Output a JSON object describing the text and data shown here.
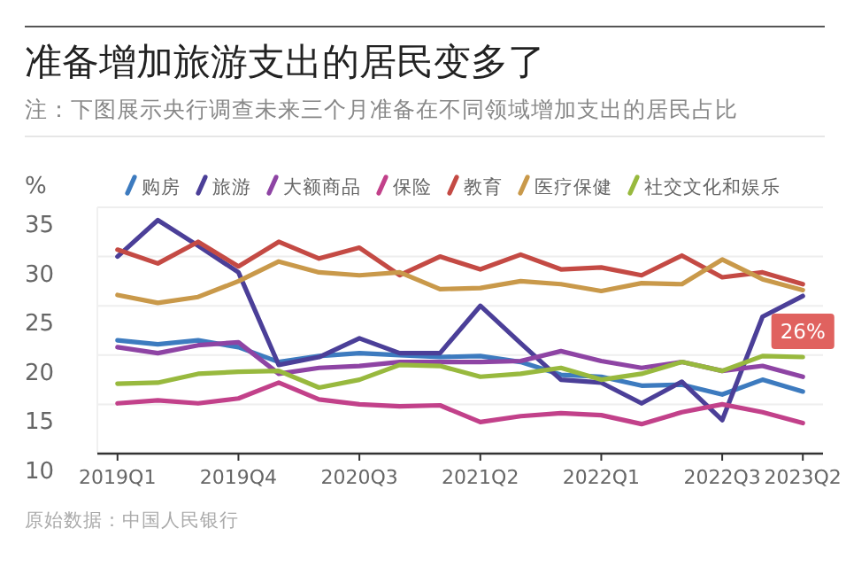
{
  "chart_data": {
    "type": "line",
    "title": "准备增加旅游支出的居民变多了",
    "subtitle": "注：下图展示央行调查未来三个月准备在不同领域增加支出的居民占比",
    "ylabel": "%",
    "categories": [
      "2019Q1",
      null,
      null,
      "2019Q4",
      null,
      null,
      "2020Q3",
      null,
      null,
      "2021Q2",
      null,
      null,
      "2022Q1",
      null,
      null,
      "2022Q3",
      null,
      "2023Q2"
    ],
    "series": [
      {
        "name": "购房",
        "color": "#3d7bbf",
        "values": [
          21.5,
          21.1,
          21.5,
          20.8,
          19.3,
          19.9,
          20.2,
          20.0,
          19.8,
          19.9,
          19.3,
          18.0,
          17.8,
          16.9,
          17.0,
          16.0,
          17.5,
          16.3
        ]
      },
      {
        "name": "旅游",
        "color": "#4b3f98",
        "values": [
          30.0,
          33.7,
          31.1,
          28.4,
          19.0,
          19.8,
          21.7,
          20.2,
          20.2,
          25.0,
          21.2,
          17.5,
          17.2,
          15.1,
          17.3,
          13.4,
          23.9,
          26
        ]
      },
      {
        "name": "大额商品",
        "color": "#8e44a4",
        "values": [
          20.8,
          20.2,
          21.0,
          21.3,
          18.1,
          18.7,
          18.9,
          19.3,
          19.3,
          19.3,
          19.4,
          20.4,
          19.4,
          18.7,
          19.3,
          18.4,
          18.9,
          17.8
        ]
      },
      {
        "name": "保险",
        "color": "#c2418a",
        "values": [
          15.1,
          15.4,
          15.1,
          15.6,
          17.2,
          15.5,
          15.0,
          14.8,
          14.9,
          13.2,
          13.8,
          14.1,
          13.9,
          13.0,
          14.2,
          15.0,
          14.2,
          13.1
        ]
      },
      {
        "name": "教育",
        "color": "#c44a44",
        "values": [
          30.7,
          29.3,
          31.5,
          29.0,
          31.5,
          29.8,
          30.9,
          28.1,
          30.0,
          28.7,
          30.2,
          28.7,
          28.9,
          28.1,
          30.1,
          27.9,
          28.4,
          27.2
        ]
      },
      {
        "name": "医疗保健",
        "color": "#c9994a",
        "values": [
          26.1,
          25.3,
          25.9,
          27.5,
          29.5,
          28.4,
          28.1,
          28.4,
          26.7,
          26.8,
          27.5,
          27.2,
          26.5,
          27.3,
          27.2,
          29.7,
          27.7,
          26.6
        ]
      },
      {
        "name": "社交文化和娱乐",
        "color": "#98b93e",
        "values": [
          17.1,
          17.2,
          18.1,
          18.3,
          18.4,
          16.7,
          17.5,
          19.0,
          18.9,
          17.8,
          18.1,
          18.7,
          17.5,
          18.1,
          19.3,
          18.4,
          19.9,
          19.8
        ]
      }
    ],
    "ylim": [
      10,
      35
    ],
    "yticks": [
      10,
      15,
      20,
      25,
      30,
      35
    ],
    "grid": "y",
    "legend": "top",
    "marker": "none",
    "line_style": "solid",
    "annotations": [
      {
        "text": "26%",
        "x": "2023Q2",
        "y": 26
      },
      "原始数据：中国人民银行"
    ]
  }
}
